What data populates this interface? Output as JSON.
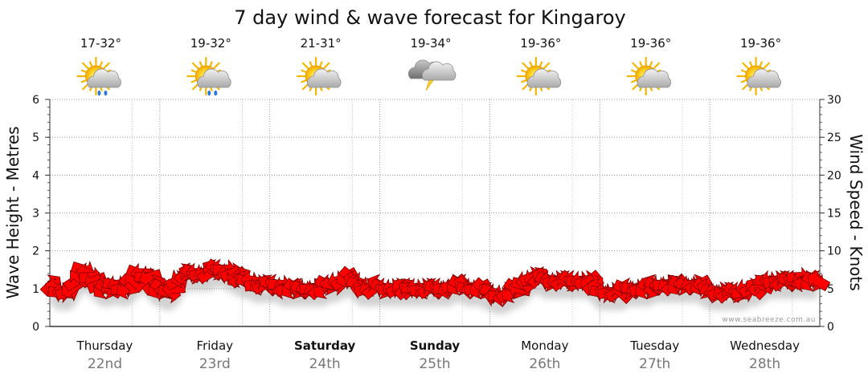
{
  "chart_data": {
    "type": "bar",
    "title": "7 day wind & wave forecast for Kingaroy",
    "y_left_label": "Wave Height - Metres",
    "y_right_label": "Wind Speed - Knots",
    "y_left_range": [
      0,
      6
    ],
    "y_left_ticks": [
      "0",
      "1",
      "2",
      "3",
      "4",
      "5",
      "6"
    ],
    "y_right_range": [
      0,
      30
    ],
    "y_right_ticks": [
      "0",
      "5",
      "10",
      "15",
      "20",
      "25",
      "30"
    ],
    "grid": true,
    "watermark": "www.seabreeze.com.au",
    "days": [
      {
        "name": "Thursday",
        "date": "22nd",
        "temp": "17-32°",
        "icon": "sun-cloud-rain-icon",
        "bold": false
      },
      {
        "name": "Friday",
        "date": "23rd",
        "temp": "19-32°",
        "icon": "sun-cloud-rain-icon",
        "bold": false
      },
      {
        "name": "Saturday",
        "date": "24th",
        "temp": "21-31°",
        "icon": "sun-cloud-icon",
        "bold": true
      },
      {
        "name": "Sunday",
        "date": "25th",
        "temp": "19-34°",
        "icon": "thunderstorm-icon",
        "bold": true
      },
      {
        "name": "Monday",
        "date": "26th",
        "temp": "19-36°",
        "icon": "sun-cloud-icon",
        "bold": false
      },
      {
        "name": "Tuesday",
        "date": "27th",
        "temp": "19-36°",
        "icon": "sun-cloud-icon",
        "bold": false
      },
      {
        "name": "Wednesday",
        "date": "28th",
        "temp": "19-36°",
        "icon": "sun-cloud-icon",
        "bold": false
      }
    ],
    "series": [
      {
        "name": "Wind Speed",
        "unit": "knots",
        "color": "#ff0000",
        "values": [
          5.5,
          5,
          4.5,
          4.5,
          4.5,
          5,
          6,
          6.5,
          7.5,
          7,
          6.5,
          6,
          5.5,
          5,
          5,
          5,
          5.5,
          5.5,
          5,
          5,
          5.5,
          6,
          7,
          7,
          6.5,
          6.5,
          5.5,
          5,
          5,
          4.5,
          4.5,
          5,
          6,
          6.5,
          7,
          7,
          7,
          7,
          7,
          7,
          7,
          7.5,
          7.5,
          7.5,
          7.5,
          7,
          7,
          6.5,
          6.5,
          6,
          6,
          6,
          5.5,
          5.5,
          5.5,
          5.5,
          5.5,
          5.5,
          5.5,
          5,
          5,
          5,
          5,
          5,
          5,
          5,
          5,
          5,
          5,
          5,
          5.5,
          5.5,
          5.5,
          6,
          6,
          6.5,
          6.5,
          6,
          5.5,
          5,
          5,
          5,
          5,
          5.5,
          5,
          5,
          5,
          5,
          5,
          5,
          5,
          5,
          5,
          5,
          5,
          5,
          5,
          5,
          5,
          5,
          5,
          5,
          5.5,
          5.5,
          5.5,
          5.5,
          5,
          5,
          5,
          5,
          5,
          4.5,
          4.5,
          4,
          4,
          4,
          4.5,
          4.5,
          5,
          5,
          5.5,
          6,
          6.5,
          6.5,
          6.5,
          6.5,
          6,
          6,
          6,
          6,
          6,
          6,
          6,
          6,
          6,
          6,
          6,
          6,
          5.5,
          5,
          4.5,
          4.5,
          4.5,
          4.5,
          4.5,
          4.5,
          5,
          5,
          5,
          5,
          5,
          5,
          5,
          5.5,
          5.5,
          5.5,
          5.5,
          5.5,
          5.5,
          5.5,
          5.5,
          5.5,
          5.5,
          5.5,
          5.5,
          5.5,
          5,
          5,
          4.5,
          4.5,
          4.5,
          4.5,
          4.5,
          4.5,
          4.5,
          4.5,
          4.5,
          5,
          5,
          5,
          5.5,
          5.5,
          6,
          6,
          6,
          6,
          6,
          6,
          6,
          6,
          6.5,
          6,
          6,
          6,
          6,
          6
        ]
      }
    ]
  }
}
